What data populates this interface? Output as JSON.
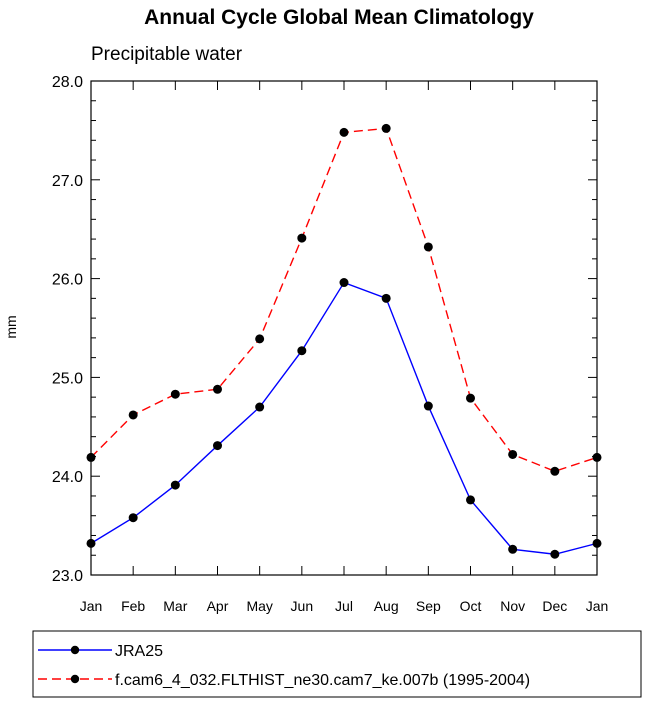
{
  "chart_data": {
    "type": "line",
    "title": "Annual Cycle Global Mean Climatology",
    "subtitle": "Precipitable water",
    "xlabel": "",
    "ylabel": "mm",
    "ylim": [
      23.0,
      28.0
    ],
    "yticks": [
      "23.0",
      "24.0",
      "25.0",
      "26.0",
      "27.0",
      "28.0"
    ],
    "categories": [
      "Jan",
      "Feb",
      "Mar",
      "Apr",
      "May",
      "Jun",
      "Jul",
      "Aug",
      "Sep",
      "Oct",
      "Nov",
      "Dec",
      "Jan"
    ],
    "series": [
      {
        "name": "JRA25",
        "color": "#0000ff",
        "dash": "solid",
        "values": [
          23.32,
          23.58,
          23.91,
          24.31,
          24.7,
          25.27,
          25.96,
          25.8,
          24.71,
          23.76,
          23.26,
          23.21,
          23.32
        ]
      },
      {
        "name": "f.cam6_4_032.FLTHIST_ne30.cam7_ke.007b (1995-2004)",
        "color": "#ff0000",
        "dash": "dashed",
        "values": [
          24.19,
          24.62,
          24.83,
          24.88,
          25.39,
          26.41,
          27.48,
          27.52,
          26.32,
          24.79,
          24.22,
          24.05,
          24.19
        ]
      }
    ],
    "legend": "bottom"
  }
}
